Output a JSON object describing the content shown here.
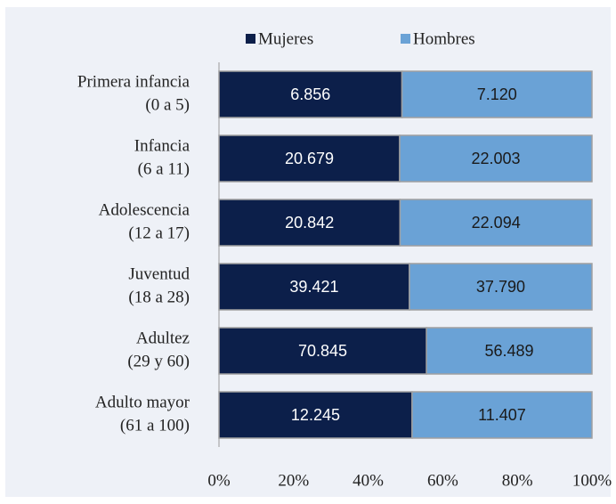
{
  "chart_data": {
    "type": "stacked-bar-percent",
    "orientation": "horizontal",
    "categories": [
      [
        "Primera infancia",
        "(0 a 5)"
      ],
      [
        "Infancia",
        "(6 a 11)"
      ],
      [
        "Adolescencia",
        "(12 a 17)"
      ],
      [
        "Juventud",
        "(18 a 28)"
      ],
      [
        "Adultez",
        "(29 y 60)"
      ],
      [
        "Adulto mayor",
        "(61 a 100)"
      ]
    ],
    "series": [
      {
        "name": "Mujeres",
        "color": "#0c1f4a",
        "label_color": "#ffffff",
        "values": [
          6856,
          20679,
          20842,
          39421,
          70845,
          12245
        ],
        "value_labels": [
          "6.856",
          "20.679",
          "20.842",
          "39.421",
          "70.845",
          "12.245"
        ]
      },
      {
        "name": "Hombres",
        "color": "#6aa2d6",
        "label_color": "#1a1a1a",
        "values": [
          7120,
          22003,
          22094,
          37790,
          56489,
          11407
        ],
        "value_labels": [
          "7.120",
          "22.003",
          "22.094",
          "37.790",
          "56.489",
          "11.407"
        ]
      }
    ],
    "xlim": [
      0,
      100
    ],
    "xticks": [
      {
        "value": 0,
        "label": "0%"
      },
      {
        "value": 20,
        "label": "20%"
      },
      {
        "value": 40,
        "label": "40%"
      },
      {
        "value": 60,
        "label": "60%"
      },
      {
        "value": 80,
        "label": "80%"
      },
      {
        "value": 100,
        "label": "100%"
      }
    ],
    "legend": "top"
  }
}
